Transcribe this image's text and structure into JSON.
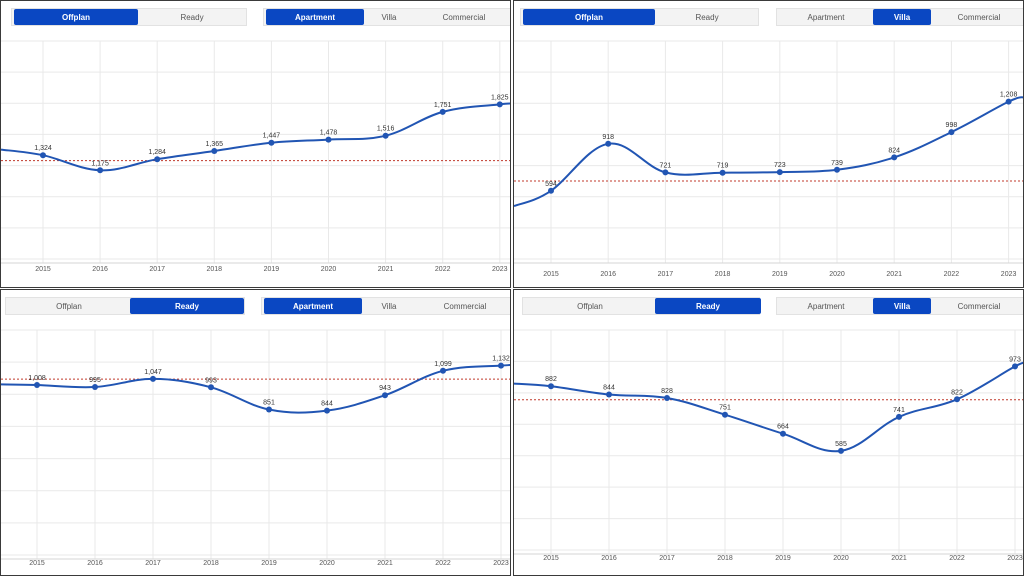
{
  "colors": {
    "accent": "#0a47c2",
    "line": "#2155b3",
    "average_line": "#c0392b",
    "grid": "#e9e9e9"
  },
  "panels": [
    {
      "status_tabs": [
        {
          "label": "Offplan",
          "active": true
        },
        {
          "label": "Ready",
          "active": false
        }
      ],
      "type_tabs": [
        {
          "label": "Apartment",
          "active": true
        },
        {
          "label": "Villa",
          "active": false
        },
        {
          "label": "Commercial",
          "active": false
        }
      ]
    },
    {
      "status_tabs": [
        {
          "label": "Offplan",
          "active": true
        },
        {
          "label": "Ready",
          "active": false
        }
      ],
      "type_tabs": [
        {
          "label": "Apartment",
          "active": false
        },
        {
          "label": "Villa",
          "active": true
        },
        {
          "label": "Commercial",
          "active": false
        }
      ]
    },
    {
      "status_tabs": [
        {
          "label": "Offplan",
          "active": false
        },
        {
          "label": "Ready",
          "active": true
        }
      ],
      "type_tabs": [
        {
          "label": "Apartment",
          "active": true
        },
        {
          "label": "Villa",
          "active": false
        },
        {
          "label": "Commercial",
          "active": false
        }
      ]
    },
    {
      "status_tabs": [
        {
          "label": "Offplan",
          "active": false
        },
        {
          "label": "Ready",
          "active": true
        }
      ],
      "type_tabs": [
        {
          "label": "Apartment",
          "active": false
        },
        {
          "label": "Villa",
          "active": true
        },
        {
          "label": "Commercial",
          "active": false
        }
      ]
    }
  ],
  "chart_data": [
    {
      "type": "line",
      "x": [
        "2015",
        "2016",
        "2017",
        "2018",
        "2019",
        "2020",
        "2021",
        "2022",
        "2023"
      ],
      "values": [
        1324,
        1175,
        1284,
        1365,
        1447,
        1478,
        1516,
        1751,
        1825
      ],
      "data_labels": [
        "1,324",
        "1,175",
        "1,284",
        "1,365",
        "1,447",
        "1,478",
        "1,516",
        "1,751",
        "1,825"
      ],
      "reference_line": 1270,
      "ylim": [
        300,
        2450
      ],
      "grid": true
    },
    {
      "type": "line",
      "x": [
        "2015",
        "2016",
        "2017",
        "2018",
        "2019",
        "2020",
        "2021",
        "2022",
        "2023"
      ],
      "values": [
        594,
        918,
        721,
        719,
        723,
        739,
        824,
        998,
        1208
      ],
      "data_labels": [
        "594",
        "918",
        "721",
        "719",
        "723",
        "739",
        "824",
        "998",
        "1,208"
      ],
      "reference_line": 662,
      "ylim": [
        125,
        1625
      ],
      "grid": true
    },
    {
      "type": "line",
      "x": [
        "2015",
        "2016",
        "2017",
        "2018",
        "2019",
        "2020",
        "2021",
        "2022",
        "2023"
      ],
      "values": [
        1008,
        995,
        1047,
        993,
        851,
        844,
        943,
        1099,
        1132
      ],
      "data_labels": [
        "1,008",
        "995",
        "1,047",
        "993",
        "851",
        "844",
        "943",
        "1,099",
        "1,132"
      ],
      "reference_line": 1046,
      "ylim": [
        -80,
        1360
      ],
      "grid": true
    },
    {
      "type": "line",
      "x": [
        "2015",
        "2016",
        "2017",
        "2018",
        "2019",
        "2020",
        "2021",
        "2022",
        "2023"
      ],
      "values": [
        882,
        844,
        828,
        751,
        664,
        585,
        741,
        822,
        973
      ],
      "data_labels": [
        "882",
        "844",
        "828",
        "751",
        "664",
        "585",
        "741",
        "822",
        "973"
      ],
      "reference_line": 820,
      "ylim": [
        130,
        1140
      ],
      "grid": true
    }
  ]
}
